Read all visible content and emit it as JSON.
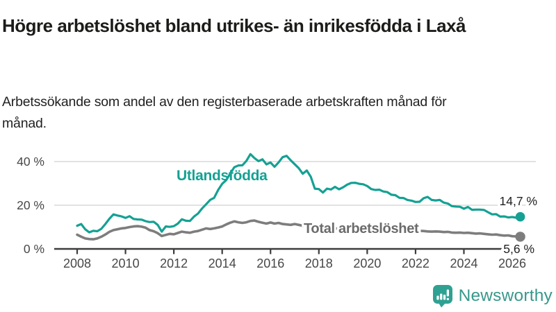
{
  "header": {
    "title": "Högre arbetslöshet bland utrikes- än inrikesfödda i Laxå",
    "subtitle": "Arbetssökande som andel av den registerbaserade arbetskraften månad för månad."
  },
  "chart_data": {
    "type": "line",
    "title": "Högre arbetslöshet bland utrikes- än inrikesfödda i Laxå",
    "subtitle": "Arbetssökande som andel av den registerbaserade arbetskraften månad för månad.",
    "unit": "%",
    "x_start": 2008.0,
    "x_step_years": 0.166667,
    "x_ticks": [
      2008,
      2010,
      2012,
      2014,
      2016,
      2018,
      2020,
      2022,
      2024,
      2026
    ],
    "y_ticks": [
      0,
      20,
      40
    ],
    "y_tick_suffix": " %",
    "ylim": [
      0,
      46
    ],
    "xlim": [
      2007.05,
      2027
    ],
    "grid": "horizontal",
    "legend_position": "inline-labels",
    "colors": {
      "accent_teal": "#14a193",
      "line_gray": "#7d7d7d",
      "gridline": "#d8d8d8",
      "axis": "#3c3c3c",
      "tick_label": "#474747",
      "value_label": "#1f1f1f"
    },
    "series": [
      {
        "name": "Utlandsfödda",
        "color": "#14a193",
        "end_label": "14,7 %",
        "end_value": 14.7,
        "values": [
          10.6,
          11.4,
          9.0,
          7.6,
          8.3,
          8.1,
          9.2,
          11.4,
          13.8,
          15.8,
          15.3,
          14.9,
          14.2,
          15.0,
          13.7,
          13.5,
          13.4,
          12.7,
          12.3,
          12.4,
          11.0,
          7.9,
          10.3,
          10.1,
          10.4,
          11.6,
          13.6,
          12.9,
          12.8,
          14.8,
          16.2,
          18.5,
          20.4,
          22.4,
          23.4,
          27.0,
          29.8,
          31.5,
          34.5,
          37.4,
          38.2,
          38.3,
          40.3,
          43.4,
          41.6,
          40.2,
          41.0,
          38.7,
          39.6,
          37.6,
          39.6,
          42.0,
          42.6,
          40.6,
          38.8,
          37.0,
          34.4,
          35.9,
          33.0,
          27.6,
          27.4,
          25.8,
          27.6,
          27.2,
          28.4,
          27.3,
          28.2,
          29.4,
          30.2,
          30.3,
          29.8,
          29.6,
          28.8,
          27.4,
          27.0,
          27.1,
          26.3,
          26.0,
          24.8,
          24.6,
          23.4,
          23.3,
          22.4,
          22.1,
          21.5,
          21.6,
          23.2,
          23.8,
          22.4,
          22.2,
          22.4,
          21.2,
          20.8,
          19.6,
          19.4,
          19.3,
          18.4,
          19.2,
          17.9,
          18.0,
          18.0,
          17.8,
          16.8,
          15.8,
          15.9,
          14.8,
          14.9,
          14.4,
          14.6,
          14.3,
          14.7
        ]
      },
      {
        "name": "Total arbetslöshet",
        "color": "#7d7d7d",
        "label_color": "#6b6b6b",
        "end_label": "5,6 %",
        "end_value": 5.6,
        "values": [
          6.5,
          5.6,
          4.8,
          4.5,
          4.4,
          4.8,
          5.6,
          6.6,
          7.8,
          8.6,
          9.0,
          9.4,
          9.6,
          10.0,
          10.3,
          10.4,
          10.2,
          9.7,
          8.6,
          8.1,
          7.2,
          5.9,
          6.4,
          6.9,
          6.7,
          7.3,
          7.9,
          7.6,
          7.4,
          7.9,
          8.2,
          8.8,
          9.4,
          9.1,
          9.4,
          9.8,
          10.3,
          11.2,
          12.0,
          12.6,
          12.2,
          11.9,
          12.2,
          12.8,
          13.0,
          12.4,
          12.0,
          11.6,
          12.1,
          11.6,
          11.9,
          11.4,
          11.2,
          11.0,
          11.4,
          11.0,
          10.6,
          10.9,
          10.5,
          10.1,
          10.0,
          9.7,
          9.9,
          9.6,
          9.4,
          9.2,
          9.4,
          9.7,
          9.9,
          9.7,
          9.5,
          9.4,
          9.6,
          10.0,
          10.2,
          10.0,
          9.7,
          9.4,
          9.2,
          8.9,
          8.7,
          8.5,
          8.4,
          8.2,
          8.1,
          8.3,
          8.2,
          8.0,
          7.9,
          8.0,
          7.9,
          7.7,
          7.8,
          7.5,
          7.4,
          7.5,
          7.3,
          7.4,
          7.2,
          7.0,
          7.1,
          6.9,
          6.7,
          6.5,
          6.6,
          6.3,
          6.1,
          6.2,
          5.8,
          5.7,
          5.6
        ]
      }
    ]
  },
  "footer": {
    "brand": "Newsworthy",
    "logo_icon": "bar-chart-speech-bubble-icon",
    "logo_color": "#2fa192"
  }
}
